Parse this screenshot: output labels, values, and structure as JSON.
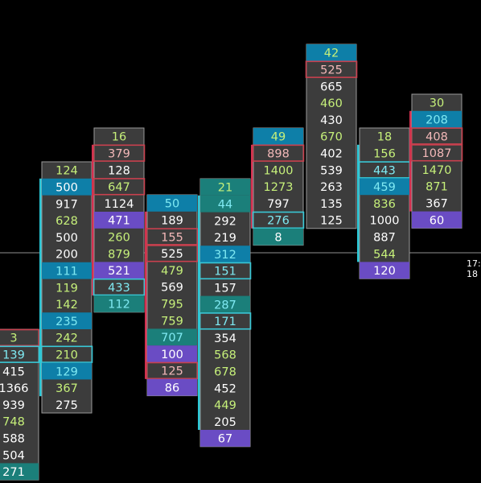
{
  "chart_data": {
    "type": "footprint",
    "colors": {
      "background": "#000000",
      "cell": "#3c3c3c",
      "cell_border": "#9a9a9a",
      "text_default": "#ffffff",
      "text_buy": "#c6f07a",
      "text_sell": "#f2b8b8",
      "text_cyan": "#7fe9f2",
      "highlight_blue": "#0e7fa8",
      "highlight_purple": "#6a4cc4",
      "highlight_teal": "#1b7f7a",
      "outline_red": "#c8404e",
      "outline_cyan": "#39c8d6",
      "wick_cyan": "#29c7d6",
      "wick_red": "#d32f4f",
      "price_line": "#8f8f8f",
      "axis_text": "#ffffff"
    },
    "axis_label_top": "17:",
    "axis_label_bottom": "18",
    "columns": [
      {
        "id": "c0",
        "wick": "cyan",
        "cells": [
          {
            "v": "3",
            "t": "buy",
            "o": "red"
          },
          {
            "v": "139",
            "t": "cyan",
            "o": "cyan"
          },
          {
            "v": "415",
            "t": "default"
          },
          {
            "v": "1366",
            "t": "default"
          },
          {
            "v": "939",
            "t": "default"
          },
          {
            "v": "748",
            "t": "buy"
          },
          {
            "v": "588",
            "t": "default"
          },
          {
            "v": "504",
            "t": "default"
          },
          {
            "v": "271",
            "t": "default",
            "bg": "teal"
          }
        ]
      },
      {
        "id": "c1",
        "wick": "cyan",
        "cells": [
          {
            "v": "124",
            "t": "buy"
          },
          {
            "v": "500",
            "t": "default",
            "bg": "blue"
          },
          {
            "v": "917",
            "t": "default"
          },
          {
            "v": "628",
            "t": "buy"
          },
          {
            "v": "500",
            "t": "default"
          },
          {
            "v": "200",
            "t": "default"
          },
          {
            "v": "111",
            "t": "cyan",
            "bg": "blue"
          },
          {
            "v": "119",
            "t": "buy"
          },
          {
            "v": "142",
            "t": "buy"
          },
          {
            "v": "235",
            "t": "cyan",
            "bg": "blue"
          },
          {
            "v": "242",
            "t": "buy"
          },
          {
            "v": "210",
            "t": "buy",
            "o": "cyan"
          },
          {
            "v": "129",
            "t": "cyan",
            "bg": "blue"
          },
          {
            "v": "367",
            "t": "buy"
          },
          {
            "v": "275",
            "t": "default"
          }
        ]
      },
      {
        "id": "c2",
        "wick": "red",
        "cells": [
          {
            "v": "16",
            "t": "buy"
          },
          {
            "v": "379",
            "t": "sell",
            "o": "red"
          },
          {
            "v": "128",
            "t": "default"
          },
          {
            "v": "647",
            "t": "buy",
            "o": "red"
          },
          {
            "v": "1124",
            "t": "default"
          },
          {
            "v": "471",
            "t": "default",
            "bg": "purple"
          },
          {
            "v": "260",
            "t": "buy"
          },
          {
            "v": "879",
            "t": "buy"
          },
          {
            "v": "521",
            "t": "default",
            "bg": "purple"
          },
          {
            "v": "433",
            "t": "cyan",
            "o": "cyan"
          },
          {
            "v": "112",
            "t": "cyan",
            "bg": "teal"
          }
        ]
      },
      {
        "id": "c3",
        "wick": "red",
        "cells": [
          {
            "v": "50",
            "t": "cyan",
            "bg": "blue"
          },
          {
            "v": "189",
            "t": "default"
          },
          {
            "v": "155",
            "t": "sell",
            "o": "red"
          },
          {
            "v": "525",
            "t": "default",
            "o": "red"
          },
          {
            "v": "479",
            "t": "buy"
          },
          {
            "v": "569",
            "t": "default"
          },
          {
            "v": "795",
            "t": "buy"
          },
          {
            "v": "759",
            "t": "buy"
          },
          {
            "v": "707",
            "t": "cyan",
            "bg": "teal"
          },
          {
            "v": "100",
            "t": "default",
            "bg": "purple"
          },
          {
            "v": "125",
            "t": "sell",
            "o": "red"
          },
          {
            "v": "86",
            "t": "default",
            "bg": "purple"
          }
        ]
      },
      {
        "id": "c4",
        "wick": "cyan",
        "cells": [
          {
            "v": "21",
            "t": "buy",
            "bg": "teal"
          },
          {
            "v": "44",
            "t": "cyan",
            "bg": "teal"
          },
          {
            "v": "292",
            "t": "default"
          },
          {
            "v": "219",
            "t": "default"
          },
          {
            "v": "312",
            "t": "cyan",
            "bg": "blue"
          },
          {
            "v": "151",
            "t": "cyan",
            "o": "cyan"
          },
          {
            "v": "157",
            "t": "default"
          },
          {
            "v": "287",
            "t": "cyan",
            "bg": "teal"
          },
          {
            "v": "171",
            "t": "cyan",
            "o": "cyan"
          },
          {
            "v": "354",
            "t": "default"
          },
          {
            "v": "568",
            "t": "buy"
          },
          {
            "v": "678",
            "t": "buy"
          },
          {
            "v": "452",
            "t": "default"
          },
          {
            "v": "449",
            "t": "buy"
          },
          {
            "v": "205",
            "t": "default"
          },
          {
            "v": "67",
            "t": "default",
            "bg": "purple"
          }
        ]
      },
      {
        "id": "c5",
        "wick": "red",
        "cells": [
          {
            "v": "49",
            "t": "buy",
            "bg": "blue"
          },
          {
            "v": "898",
            "t": "sell",
            "o": "red"
          },
          {
            "v": "1400",
            "t": "buy"
          },
          {
            "v": "1273",
            "t": "buy"
          },
          {
            "v": "797",
            "t": "default"
          },
          {
            "v": "276",
            "t": "cyan",
            "o": "cyan"
          },
          {
            "v": "8",
            "t": "default",
            "bg": "teal"
          }
        ]
      },
      {
        "id": "c6",
        "wick": "none",
        "cells": [
          {
            "v": "42",
            "t": "buy",
            "bg": "blue"
          },
          {
            "v": "525",
            "t": "sell",
            "o": "red"
          },
          {
            "v": "665",
            "t": "default"
          },
          {
            "v": "460",
            "t": "buy"
          },
          {
            "v": "430",
            "t": "default"
          },
          {
            "v": "670",
            "t": "buy"
          },
          {
            "v": "402",
            "t": "default"
          },
          {
            "v": "539",
            "t": "default"
          },
          {
            "v": "263",
            "t": "default"
          },
          {
            "v": "135",
            "t": "default"
          },
          {
            "v": "125",
            "t": "default"
          }
        ]
      },
      {
        "id": "c7",
        "wick": "cyan",
        "cells": [
          {
            "v": "18",
            "t": "buy"
          },
          {
            "v": "156",
            "t": "buy"
          },
          {
            "v": "443",
            "t": "cyan",
            "o": "cyan"
          },
          {
            "v": "459",
            "t": "cyan",
            "bg": "blue"
          },
          {
            "v": "836",
            "t": "buy"
          },
          {
            "v": "1000",
            "t": "default"
          },
          {
            "v": "887",
            "t": "default"
          },
          {
            "v": "544",
            "t": "buy"
          },
          {
            "v": "120",
            "t": "default",
            "bg": "purple"
          }
        ]
      },
      {
        "id": "c8",
        "wick": "red",
        "cells": [
          {
            "v": "30",
            "t": "buy"
          },
          {
            "v": "208",
            "t": "cyan",
            "bg": "blue"
          },
          {
            "v": "408",
            "t": "sell",
            "o": "red"
          },
          {
            "v": "1087",
            "t": "sell",
            "o": "red"
          },
          {
            "v": "1470",
            "t": "buy"
          },
          {
            "v": "871",
            "t": "buy"
          },
          {
            "v": "367",
            "t": "default"
          },
          {
            "v": "60",
            "t": "default",
            "bg": "purple"
          }
        ]
      }
    ]
  }
}
